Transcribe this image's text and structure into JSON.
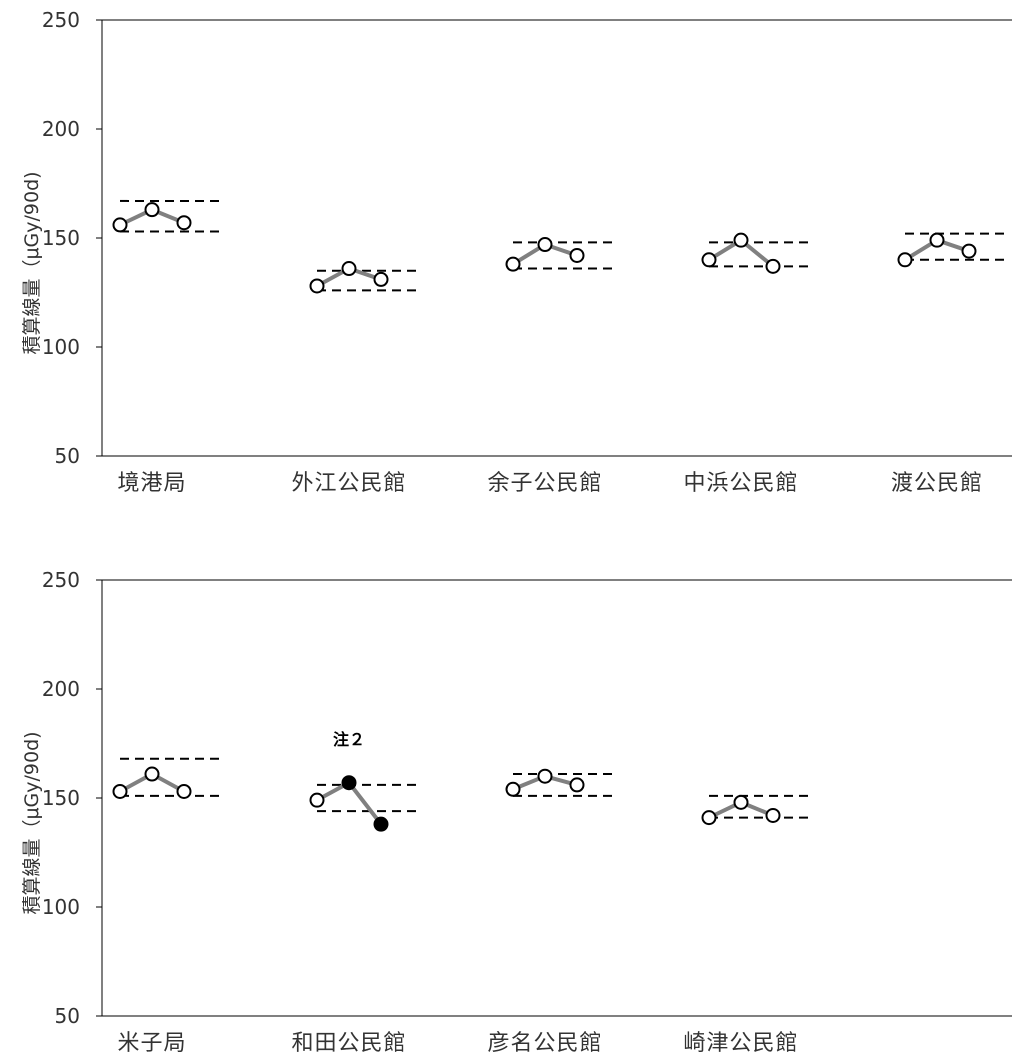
{
  "chart_data": [
    {
      "type": "line",
      "ylabel": "積算線量（μGy/90d)",
      "ylim": [
        50,
        250
      ],
      "yticks": [
        50,
        100,
        150,
        200,
        250
      ],
      "categories": [
        "境港局",
        "外江公民館",
        "余子公民館",
        "中浜公民館",
        "渡公民館"
      ],
      "stations": [
        {
          "label": "境港局",
          "values": [
            156,
            163,
            157
          ],
          "range": [
            153,
            167
          ],
          "filled": [
            false,
            false,
            false
          ]
        },
        {
          "label": "外江公民館",
          "values": [
            128,
            136,
            131
          ],
          "range": [
            126,
            135
          ],
          "filled": [
            false,
            false,
            false
          ]
        },
        {
          "label": "余子公民館",
          "values": [
            138,
            147,
            142
          ],
          "range": [
            136,
            148
          ],
          "filled": [
            false,
            false,
            false
          ]
        },
        {
          "label": "中浜公民館",
          "values": [
            140,
            149,
            137
          ],
          "range": [
            137,
            148
          ],
          "filled": [
            false,
            false,
            false
          ]
        },
        {
          "label": "渡公民館",
          "values": [
            140,
            149,
            144
          ],
          "range": [
            140,
            152
          ],
          "filled": [
            false,
            false,
            false
          ]
        }
      ]
    },
    {
      "type": "line",
      "ylabel": "積算線量（μGy/90d)",
      "ylim": [
        50,
        250
      ],
      "yticks": [
        50,
        100,
        150,
        200,
        250
      ],
      "categories": [
        "米子局",
        "和田公民館",
        "彦名公民館",
        "崎津公民館"
      ],
      "stations": [
        {
          "label": "米子局",
          "values": [
            153,
            161,
            153
          ],
          "range": [
            151,
            168
          ],
          "filled": [
            false,
            false,
            false
          ]
        },
        {
          "label": "和田公民館",
          "values": [
            149,
            157,
            138
          ],
          "range": [
            144,
            156
          ],
          "filled": [
            false,
            true,
            true
          ],
          "note": "注２"
        },
        {
          "label": "彦名公民館",
          "values": [
            154,
            160,
            156
          ],
          "range": [
            151,
            161
          ],
          "filled": [
            false,
            false,
            false
          ]
        },
        {
          "label": "崎津公民館",
          "values": [
            141,
            148,
            142
          ],
          "range": [
            141,
            151
          ],
          "filled": [
            false,
            false,
            false
          ]
        }
      ]
    }
  ],
  "colors": {
    "line": "#808080",
    "axis": "#000000",
    "marker_fill": "#ffffff",
    "marker_filled": "#000000",
    "text": "#333333"
  }
}
